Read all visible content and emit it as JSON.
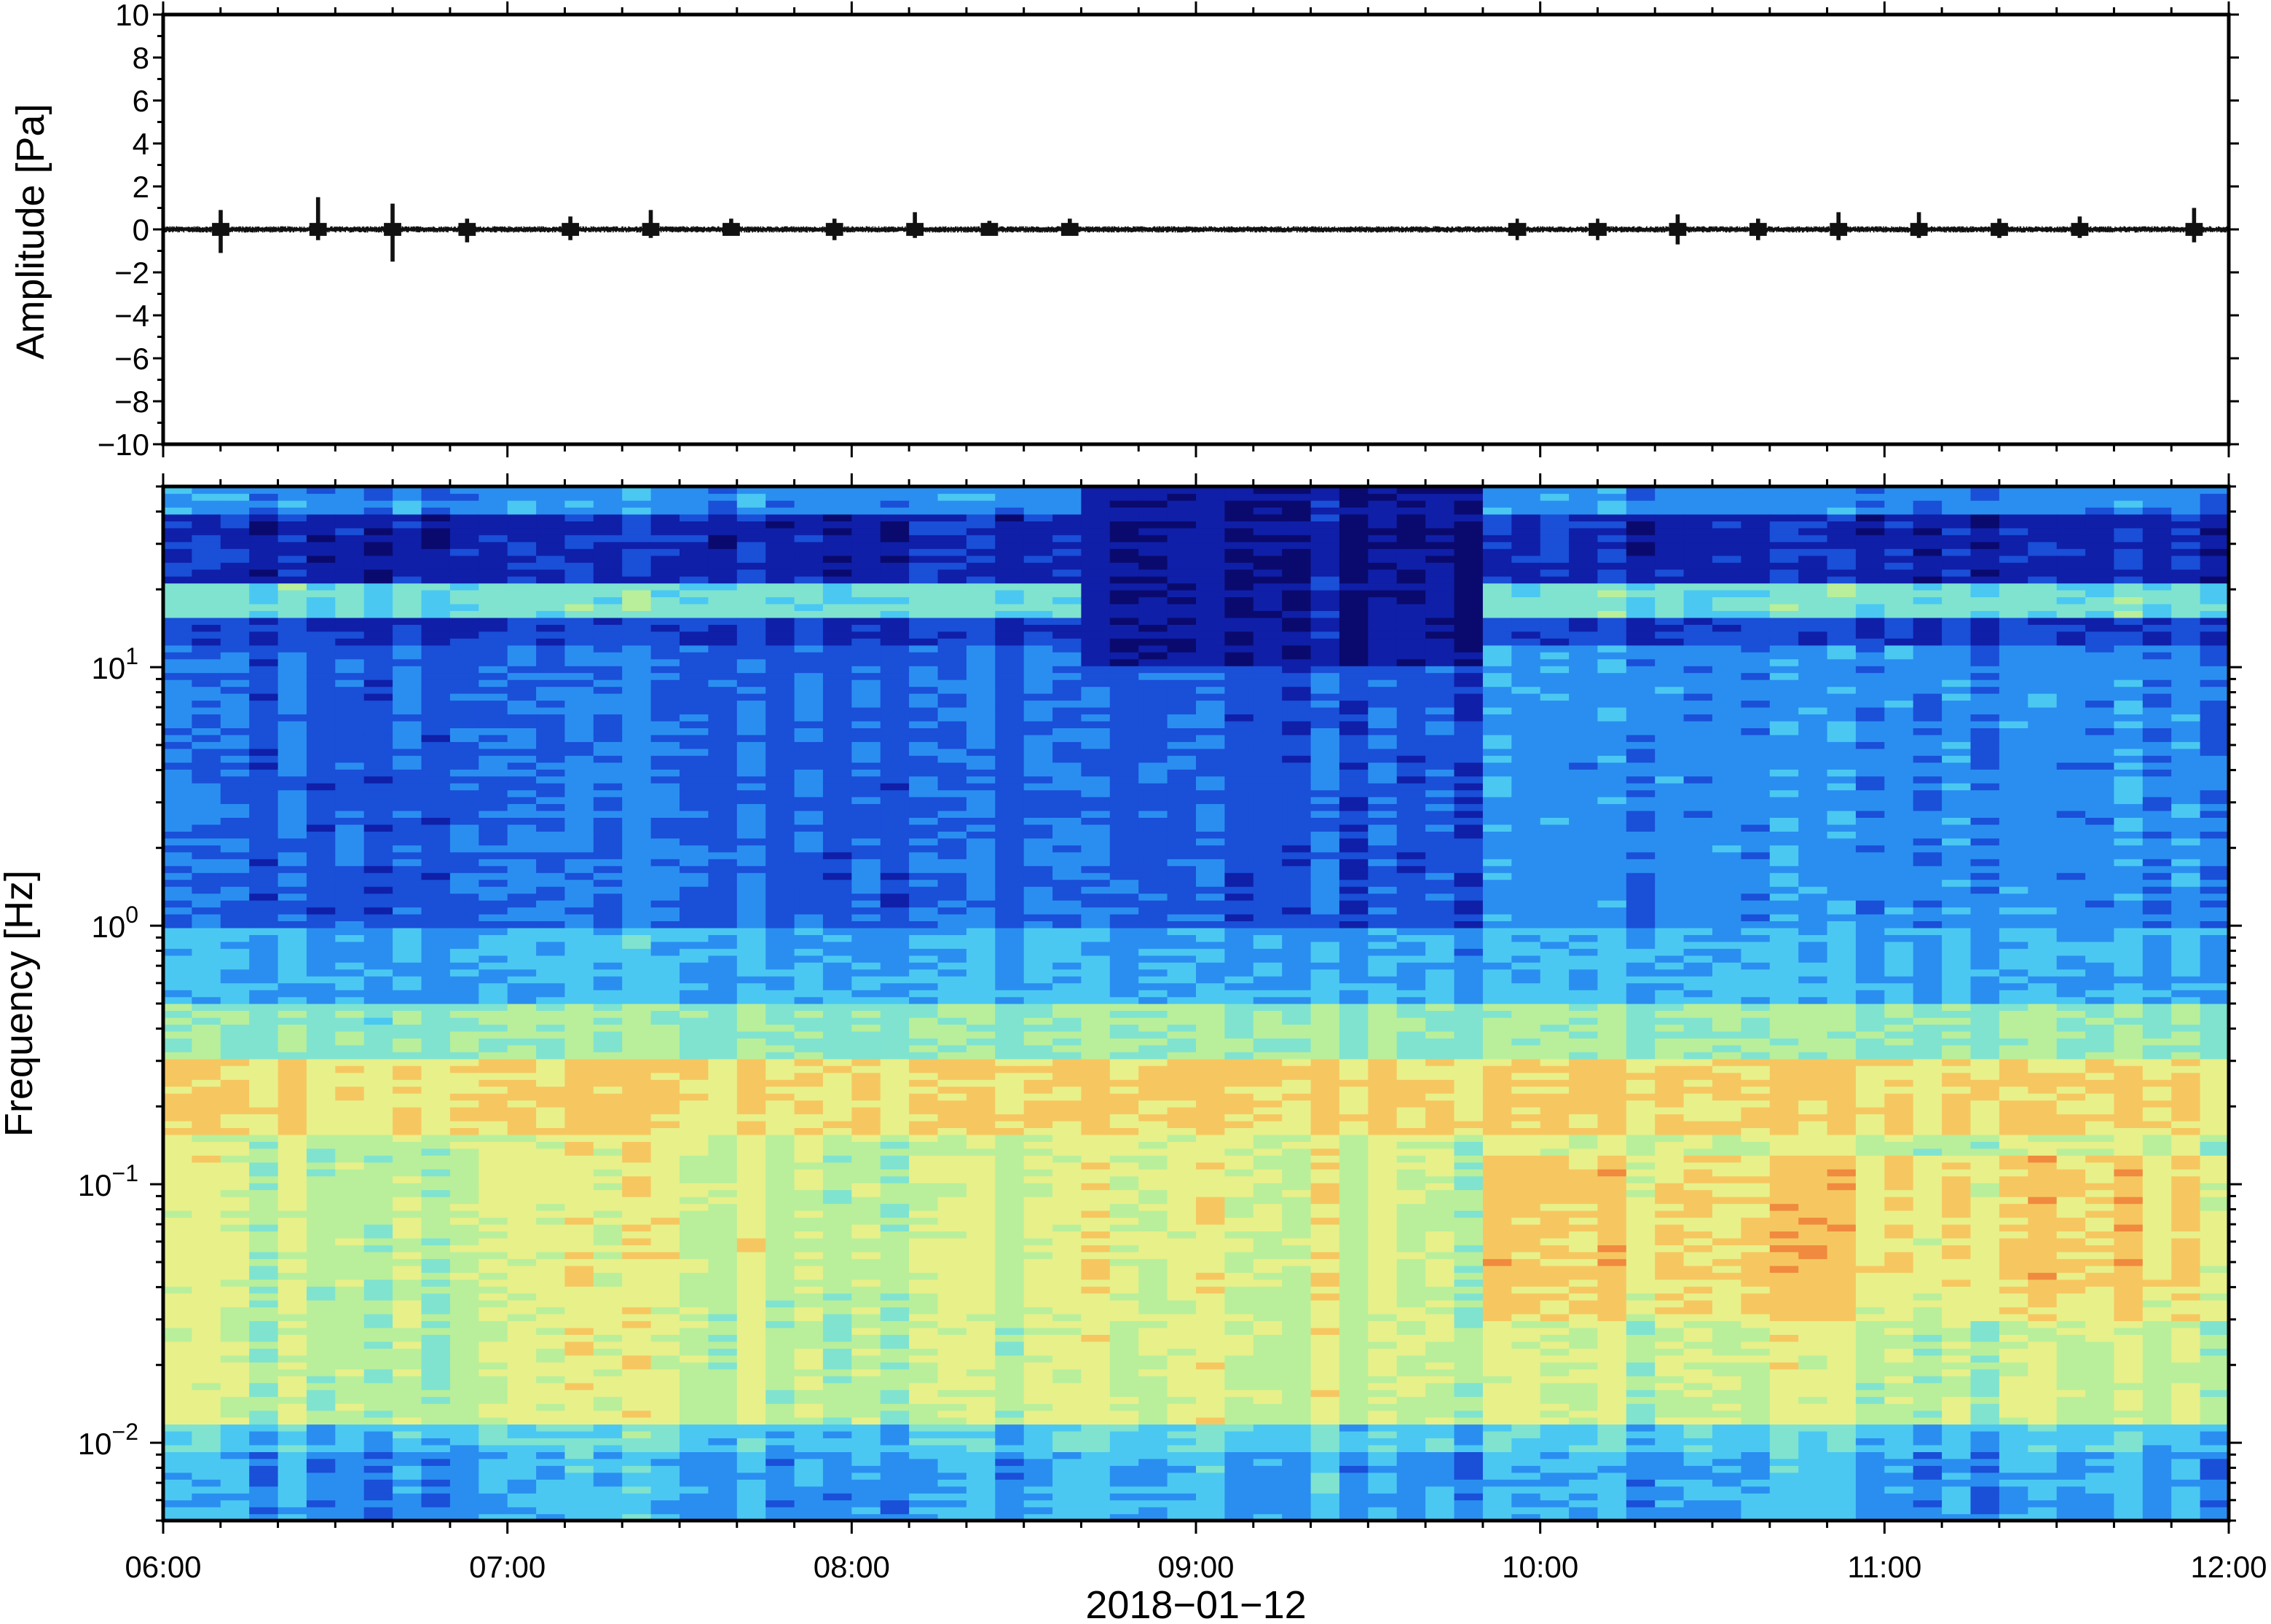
{
  "chart_data": [
    {
      "type": "line",
      "panel": "waveform",
      "ylabel": "Amplitude [Pa]",
      "xlim": [
        "06:00",
        "12:00"
      ],
      "ylim": [
        -10,
        10
      ],
      "y_ticks": [
        10,
        8,
        6,
        4,
        2,
        0,
        -2,
        -4,
        -6,
        -8,
        -10
      ],
      "y_tick_labels": [
        "10",
        "8",
        "6",
        "4",
        "2",
        "0",
        "−2",
        "−4",
        "−6",
        "−8",
        "−10"
      ],
      "baseline": 0,
      "noise_amplitude": 0.15,
      "spikes": [
        {
          "t": "06:10",
          "max": 0.9,
          "min": -1.1
        },
        {
          "t": "06:27",
          "max": 1.5,
          "min": -0.5
        },
        {
          "t": "06:40",
          "max": 1.2,
          "min": -1.5
        },
        {
          "t": "06:53",
          "max": 0.5,
          "min": -0.6
        },
        {
          "t": "07:11",
          "max": 0.6,
          "min": -0.5
        },
        {
          "t": "07:25",
          "max": 0.9,
          "min": -0.4
        },
        {
          "t": "07:39",
          "max": 0.5,
          "min": -0.3
        },
        {
          "t": "07:57",
          "max": 0.5,
          "min": -0.5
        },
        {
          "t": "08:11",
          "max": 0.8,
          "min": -0.4
        },
        {
          "t": "08:24",
          "max": 0.4,
          "min": -0.3
        },
        {
          "t": "08:38",
          "max": 0.5,
          "min": -0.3
        },
        {
          "t": "09:56",
          "max": 0.5,
          "min": -0.5
        },
        {
          "t": "10:10",
          "max": 0.5,
          "min": -0.5
        },
        {
          "t": "10:24",
          "max": 0.7,
          "min": -0.7
        },
        {
          "t": "10:38",
          "max": 0.5,
          "min": -0.5
        },
        {
          "t": "10:52",
          "max": 0.8,
          "min": -0.5
        },
        {
          "t": "11:06",
          "max": 0.8,
          "min": -0.4
        },
        {
          "t": "11:20",
          "max": 0.5,
          "min": -0.4
        },
        {
          "t": "11:34",
          "max": 0.6,
          "min": -0.4
        },
        {
          "t": "11:54",
          "max": 1.0,
          "min": -0.6
        }
      ]
    },
    {
      "type": "heatmap",
      "panel": "spectrogram",
      "ylabel": "Frequency [Hz]",
      "xlabel": "2018−01−12",
      "yscale": "log",
      "ylim": [
        0.005,
        50
      ],
      "y_ticks": [
        0.01,
        0.1,
        1,
        10
      ],
      "y_tick_labels": [
        {
          "base": "10",
          "exp": "−2"
        },
        {
          "base": "10",
          "exp": "−1"
        },
        {
          "base": "10",
          "exp": "0"
        },
        {
          "base": "10",
          "exp": "1"
        }
      ],
      "x_tick_labels": [
        "06:00",
        "07:00",
        "08:00",
        "09:00",
        "10:00",
        "11:00",
        "12:00"
      ],
      "xlim": [
        "06:00",
        "12:00"
      ],
      "colormap": [
        "#0a0a6e",
        "#0f1fa8",
        "#1a4fd8",
        "#2a8ef0",
        "#4ac8f2",
        "#7fe3d0",
        "#b9ef9a",
        "#e8f08a",
        "#f6c760",
        "#f08a3e"
      ],
      "bands": [
        {
          "freq_range": [
            40,
            50
          ],
          "description_level": 3
        },
        {
          "freq_range": [
            16,
            21
          ],
          "description_level": 5
        },
        {
          "freq_range": [
            0.15,
            0.25
          ],
          "description_level": 8
        }
      ],
      "quiet_interval": [
        "08:40",
        "09:48"
      ]
    }
  ]
}
